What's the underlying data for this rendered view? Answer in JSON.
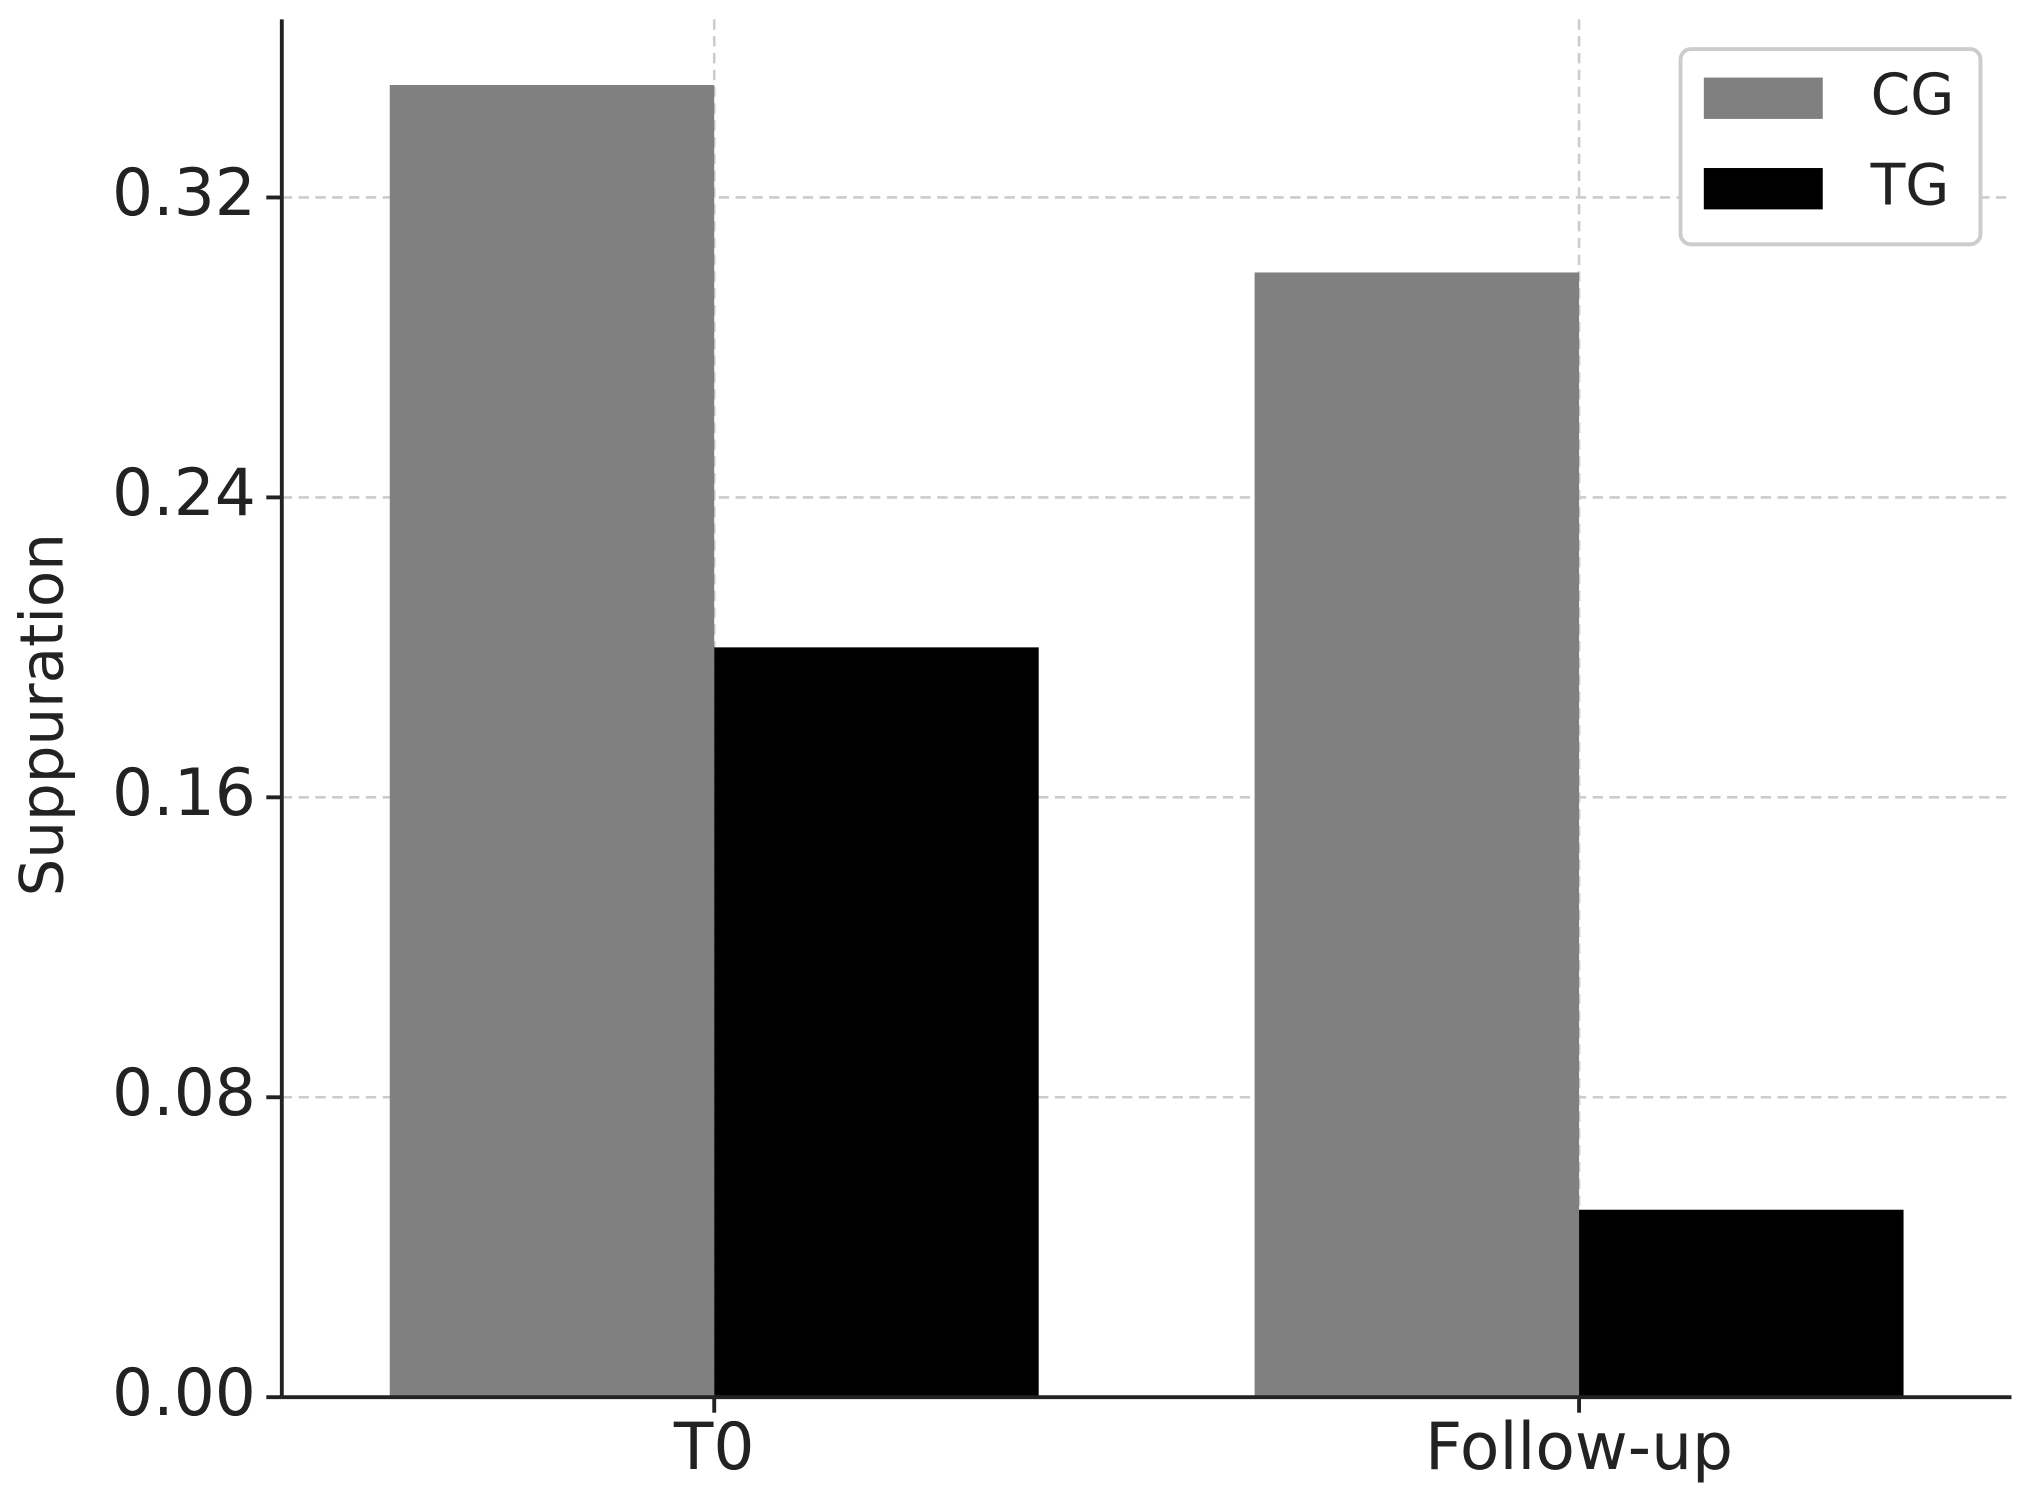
{
  "chart_data": {
    "type": "bar",
    "y_label": "Suppuration",
    "categories": [
      "T0",
      "Follow-up"
    ],
    "series": [
      {
        "name": "CG",
        "color": "#808080",
        "values": [
          0.35,
          0.3
        ]
      },
      {
        "name": "TG",
        "color": "#000000",
        "values": [
          0.2,
          0.05
        ]
      }
    ],
    "ylim": [
      0,
      0.3675
    ],
    "yticks": [
      {
        "value": 0,
        "label": "0.00"
      },
      0.08,
      0.16,
      0.24,
      0.32
    ],
    "grid": true,
    "legend": "upper right"
  }
}
